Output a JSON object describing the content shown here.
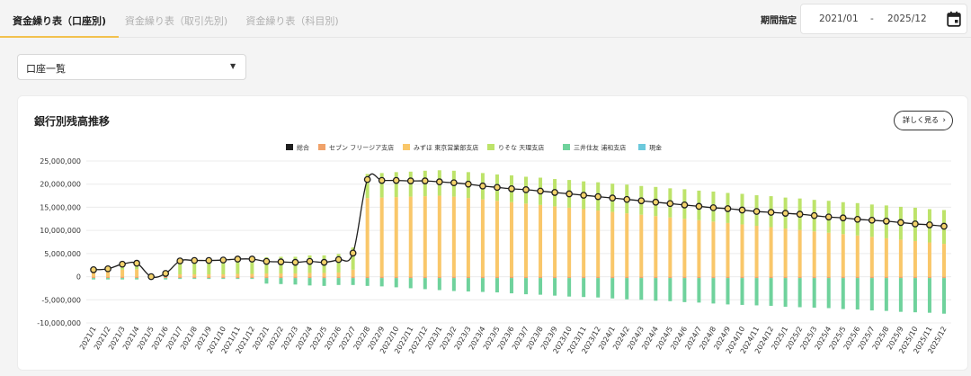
{
  "tabs": [
    {
      "label": "資金繰り表（口座別)"
    },
    {
      "label": "資金繰り表（取引先別)"
    },
    {
      "label": "資金繰り表（科目別)"
    }
  ],
  "period": {
    "label": "期間指定",
    "from": "2021/01",
    "separator": "-",
    "to": "2025/12",
    "icon": "calendar-icon"
  },
  "account_select": {
    "value": "口座一覧",
    "icon": "caret-down-icon"
  },
  "card": {
    "title": "銀行別残高推移",
    "detail_button": "詳しく見る",
    "detail_icon": "chevron-right-icon"
  },
  "colors": {
    "total": "#1f1f1f",
    "seven": "#f0a26a",
    "mizuho": "#f9c76a",
    "resona": "#bde36a",
    "smbc": "#6fd29c",
    "cash": "#6cc9dc",
    "marker_fill": "#f4d36b"
  },
  "chart_data": {
    "type": "bar",
    "ylim": [
      -10000000,
      25000000
    ],
    "yticks": [
      "25,000,000",
      "20,000,000",
      "15,000,000",
      "10,000,000",
      "5,000,000",
      "0",
      "-5,000,000",
      "-10,000,000"
    ],
    "ytick_values": [
      25000000,
      20000000,
      15000000,
      10000000,
      5000000,
      0,
      -5000000,
      -10000000
    ],
    "categories": [
      "2021/1",
      "2021/2",
      "2021/3",
      "2021/4",
      "2021/5",
      "2021/6",
      "2021/7",
      "2021/8",
      "2021/9",
      "2021/10",
      "2021/11",
      "2021/12",
      "2022/1",
      "2022/2",
      "2022/3",
      "2022/4",
      "2022/5",
      "2022/6",
      "2022/7",
      "2022/8",
      "2022/9",
      "2022/10",
      "2022/11",
      "2022/12",
      "2023/1",
      "2023/2",
      "2023/3",
      "2023/4",
      "2023/5",
      "2023/6",
      "2023/7",
      "2023/8",
      "2023/9",
      "2023/10",
      "2023/11",
      "2023/12",
      "2024/1",
      "2024/2",
      "2024/3",
      "2024/4",
      "2024/5",
      "2024/6",
      "2024/7",
      "2024/8",
      "2024/9",
      "2024/10",
      "2024/11",
      "2024/12",
      "2025/1",
      "2025/2",
      "2025/3",
      "2025/4",
      "2025/5",
      "2025/6",
      "2025/7",
      "2025/8",
      "2025/9",
      "2025/10",
      "2025/11",
      "2025/12"
    ],
    "series": [
      {
        "name": "総合",
        "type": "line",
        "color": "#1f1f1f",
        "values": [
          1500000,
          1700000,
          2700000,
          2900000,
          0,
          700000,
          3400000,
          3500000,
          3500000,
          3600000,
          3800000,
          3800000,
          3300000,
          3200000,
          3100000,
          3300000,
          3100000,
          3700000,
          5100000,
          21000000,
          20800000,
          20800000,
          20700000,
          20700000,
          20500000,
          20300000,
          20000000,
          19600000,
          19300000,
          19000000,
          18800000,
          18500000,
          18200000,
          17900000,
          17600000,
          17300000,
          17000000,
          16700000,
          16400000,
          16100000,
          15800000,
          15500000,
          15200000,
          14900000,
          14700000,
          14400000,
          14100000,
          13900000,
          13700000,
          13500000,
          13200000,
          12900000,
          12700000,
          12400000,
          12200000,
          12000000,
          11700000,
          11400000,
          11200000,
          10900000
        ]
      },
      {
        "name": "セブン フリージア支店",
        "color": "#f0a26a",
        "values": [
          -300000,
          -300000,
          -300000,
          -300000,
          -300000,
          -300000,
          -300000,
          -300000,
          -300000,
          -300000,
          -300000,
          -300000,
          -300000,
          -300000,
          -300000,
          -300000,
          -300000,
          -300000,
          -300000,
          -300000,
          -300000,
          -300000,
          -300000,
          -300000,
          -300000,
          -300000,
          -300000,
          -300000,
          -300000,
          -300000,
          -300000,
          -300000,
          -300000,
          -300000,
          -300000,
          -300000,
          -300000,
          -300000,
          -300000,
          -300000,
          -300000,
          -300000,
          -300000,
          -300000,
          -300000,
          -300000,
          -300000,
          -300000,
          -300000,
          -300000,
          -300000,
          -300000,
          -300000,
          -300000,
          -300000,
          -300000,
          -300000,
          -300000,
          -300000,
          -300000
        ]
      },
      {
        "name": "みずほ 東京営業部支店",
        "color": "#f9c76a",
        "values": [
          1200000,
          1300000,
          1500000,
          1600000,
          0,
          0,
          500000,
          500000,
          500000,
          500000,
          600000,
          600000,
          700000,
          700000,
          700000,
          800000,
          800000,
          900000,
          1500000,
          17000000,
          17100000,
          17200000,
          17300000,
          17400000,
          17500000,
          17300000,
          17000000,
          16700000,
          16400000,
          16100000,
          15800000,
          15500000,
          15200000,
          14900000,
          14600000,
          14300000,
          14000000,
          13700000,
          13400000,
          13100000,
          12800000,
          12500000,
          12200000,
          11900000,
          11600000,
          11300000,
          11000000,
          10700000,
          10400000,
          10100000,
          9800000,
          9500000,
          9200000,
          8900000,
          8600000,
          8300000,
          8000000,
          7700000,
          7400000,
          7100000
        ]
      },
      {
        "name": "りそな 天理支店",
        "color": "#bde36a",
        "values": [
          900000,
          1000000,
          1600000,
          1700000,
          600000,
          1100000,
          3200000,
          3300000,
          3300000,
          3400000,
          3500000,
          3500000,
          3500000,
          3600000,
          3600000,
          3800000,
          3800000,
          4000000,
          4800000,
          5200000,
          5300000,
          5400000,
          5400000,
          5500000,
          5500000,
          5600000,
          5600000,
          5700000,
          5700000,
          5800000,
          5800000,
          5900000,
          5900000,
          6000000,
          6000000,
          6100000,
          6100000,
          6200000,
          6200000,
          6300000,
          6300000,
          6400000,
          6400000,
          6500000,
          6500000,
          6600000,
          6600000,
          6700000,
          6700000,
          6800000,
          6800000,
          6900000,
          6900000,
          7000000,
          7000000,
          7100000,
          7100000,
          7200000,
          7200000,
          7300000
        ]
      },
      {
        "name": "三井住友 浦和支店",
        "color": "#6fd29c",
        "values": [
          -300000,
          -300000,
          -300000,
          -300000,
          -300000,
          -300000,
          -200000,
          -200000,
          -200000,
          -200000,
          -200000,
          -200000,
          -1200000,
          -1300000,
          -1400000,
          -1600000,
          -1700000,
          -1500000,
          -1500000,
          -1700000,
          -1800000,
          -2000000,
          -2200000,
          -2400000,
          -2600000,
          -2800000,
          -2900000,
          -3000000,
          -3100000,
          -3300000,
          -3500000,
          -3600000,
          -3800000,
          -4000000,
          -4100000,
          -4200000,
          -4400000,
          -4600000,
          -4700000,
          -4900000,
          -5000000,
          -5200000,
          -5300000,
          -5500000,
          -5700000,
          -5800000,
          -5900000,
          -6000000,
          -6200000,
          -6300000,
          -6400000,
          -6500000,
          -6700000,
          -6800000,
          -7000000,
          -7100000,
          -7300000,
          -7400000,
          -7500000,
          -7700000
        ]
      },
      {
        "name": "現金",
        "color": "#6cc9dc",
        "values": [
          0,
          0,
          0,
          0,
          0,
          0,
          0,
          0,
          0,
          0,
          0,
          0,
          0,
          0,
          0,
          0,
          0,
          0,
          0,
          0,
          0,
          0,
          0,
          0,
          0,
          0,
          0,
          0,
          0,
          0,
          0,
          0,
          0,
          0,
          0,
          0,
          0,
          0,
          0,
          0,
          0,
          0,
          0,
          0,
          0,
          0,
          0,
          0,
          0,
          0,
          0,
          0,
          0,
          0,
          0,
          0,
          0,
          0,
          0,
          0
        ]
      }
    ],
    "legend_position": "top-center",
    "grid": true
  }
}
